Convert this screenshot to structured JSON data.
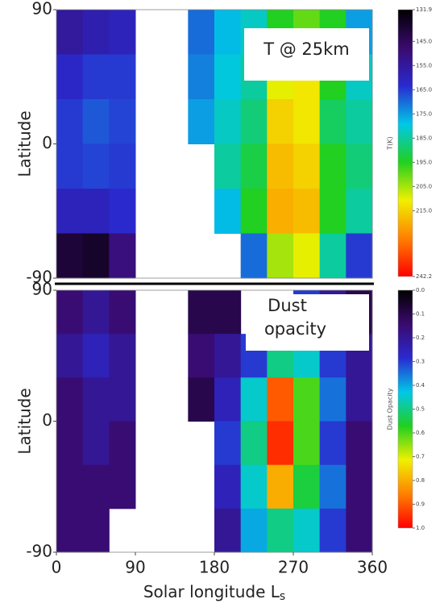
{
  "chart_data": [
    {
      "type": "heatmap",
      "annotation_lines": [
        "T @ 25km"
      ],
      "ylabel": "Latitude",
      "xlim": [
        0,
        360
      ],
      "ylim": [
        -90,
        90
      ],
      "yticks": [
        90,
        0,
        -90
      ],
      "xbins": [
        0,
        30,
        60,
        90,
        120,
        150,
        180,
        210,
        240,
        270,
        300,
        330,
        360
      ],
      "ybins": [
        90,
        60,
        30,
        0,
        -30,
        -60,
        -90
      ],
      "z": [
        [
          155,
          158,
          160,
          null,
          null,
          170,
          178,
          182,
          195,
          200,
          195,
          175
        ],
        [
          162,
          165,
          165,
          null,
          null,
          172,
          180,
          185,
          210,
          212,
          195,
          182
        ],
        [
          165,
          168,
          166,
          null,
          null,
          175,
          182,
          188,
          215,
          212,
          190,
          185
        ],
        [
          165,
          166,
          165,
          null,
          null,
          null,
          185,
          192,
          218,
          215,
          195,
          188
        ],
        [
          160,
          160,
          163,
          null,
          null,
          null,
          178,
          195,
          220,
          218,
          195,
          185
        ],
        [
          140,
          138,
          150,
          null,
          null,
          null,
          null,
          170,
          205,
          210,
          185,
          165
        ]
      ],
      "colormap": [
        "#000000",
        "#3a0a6e",
        "#2a2ad0",
        "#00c8e8",
        "#20d020",
        "#f0f000",
        "#ff8000",
        "#ff0000"
      ],
      "colorbar_label": "T(K)",
      "zlim": [
        131.9,
        242.2
      ],
      "zticks": [
        131.9,
        {
          "value": 145,
          "label": "145.0"
        },
        {
          "value": 155,
          "label": "155.0"
        },
        {
          "value": 165,
          "label": "165.0"
        },
        {
          "value": 175,
          "label": "175.0"
        },
        {
          "value": 185,
          "label": "185.0"
        },
        {
          "value": 195,
          "label": "195.0"
        },
        {
          "value": 205,
          "label": "205.0"
        },
        {
          "value": 215,
          "label": "215.0"
        },
        242.2
      ]
    },
    {
      "type": "heatmap",
      "annotation_lines": [
        "Dust",
        "opacity"
      ],
      "ylabel": "Latitude",
      "xlabel": "Solar longitude L",
      "xlabel_subscript": "s",
      "xlim": [
        0,
        360
      ],
      "ylim": [
        -90,
        90
      ],
      "yticks": [
        90,
        0,
        -90
      ],
      "xticks": [
        0,
        90,
        180,
        270,
        360
      ],
      "xbins": [
        0,
        30,
        60,
        90,
        120,
        150,
        180,
        210,
        240,
        270,
        300,
        330,
        360
      ],
      "ybins": [
        90,
        60,
        30,
        0,
        -30,
        -60,
        -90
      ],
      "z": [
        [
          0.15,
          0.2,
          0.15,
          null,
          null,
          0.1,
          0.1,
          null,
          null,
          0.3,
          0.2,
          0.1
        ],
        [
          0.2,
          0.25,
          0.2,
          null,
          null,
          0.15,
          0.2,
          0.3,
          0.5,
          0.45,
          0.3,
          0.2
        ],
        [
          0.15,
          0.2,
          0.2,
          null,
          null,
          0.1,
          0.25,
          0.45,
          0.9,
          0.6,
          0.35,
          0.2
        ],
        [
          0.15,
          0.2,
          0.15,
          null,
          null,
          null,
          0.3,
          0.5,
          0.95,
          0.6,
          0.3,
          0.15
        ],
        [
          0.15,
          0.15,
          0.15,
          null,
          null,
          null,
          0.25,
          0.45,
          0.8,
          0.55,
          0.35,
          0.15
        ],
        [
          0.15,
          0.15,
          null,
          null,
          null,
          null,
          0.2,
          0.4,
          0.5,
          0.45,
          0.3,
          0.15
        ]
      ],
      "colormap": [
        "#000000",
        "#3a0a6e",
        "#2a2ad0",
        "#00c8e8",
        "#20d020",
        "#f0f000",
        "#ff8000",
        "#ff0000"
      ],
      "colorbar_label": "Dust Opacity",
      "zlim": [
        0,
        1
      ],
      "zticks": [
        {
          "value": 0,
          "label": "0.0"
        },
        0.1,
        0.2,
        0.3,
        0.4,
        0.5,
        0.6,
        0.7,
        0.8,
        0.9,
        {
          "value": 1,
          "label": "1.0"
        }
      ]
    }
  ]
}
